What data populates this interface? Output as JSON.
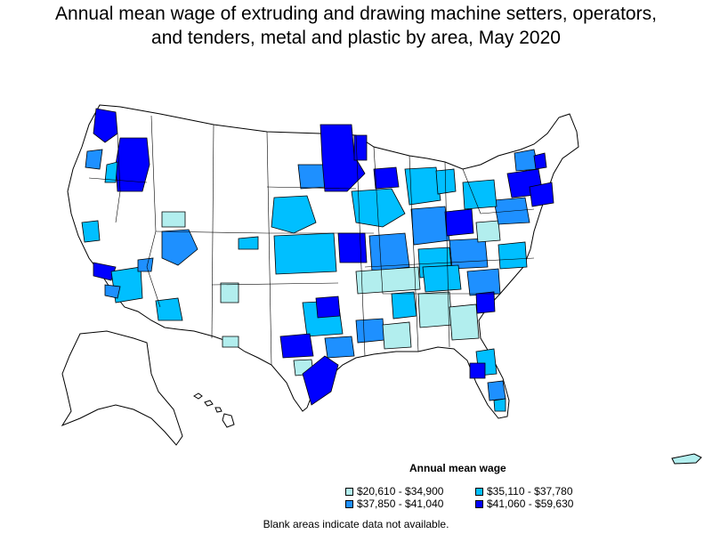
{
  "title_lines": [
    "Annual mean wage of extruding and drawing machine setters, operators,",
    "and tenders, metal and plastic by area, May 2020"
  ],
  "legend": {
    "title": "Annual mean wage",
    "items": [
      {
        "label": "$20,610 - $34,900",
        "color": "#b2eeee"
      },
      {
        "label": "$35,110 - $37,780",
        "color": "#00bfff"
      },
      {
        "label": "$37,850 - $41,040",
        "color": "#1e90ff"
      },
      {
        "label": "$41,060 - $59,630",
        "color": "#0000ff"
      }
    ]
  },
  "footnote": "Blank areas indicate data not available.",
  "colors": {
    "no_data": "#ffffff",
    "border": "#000000"
  }
}
